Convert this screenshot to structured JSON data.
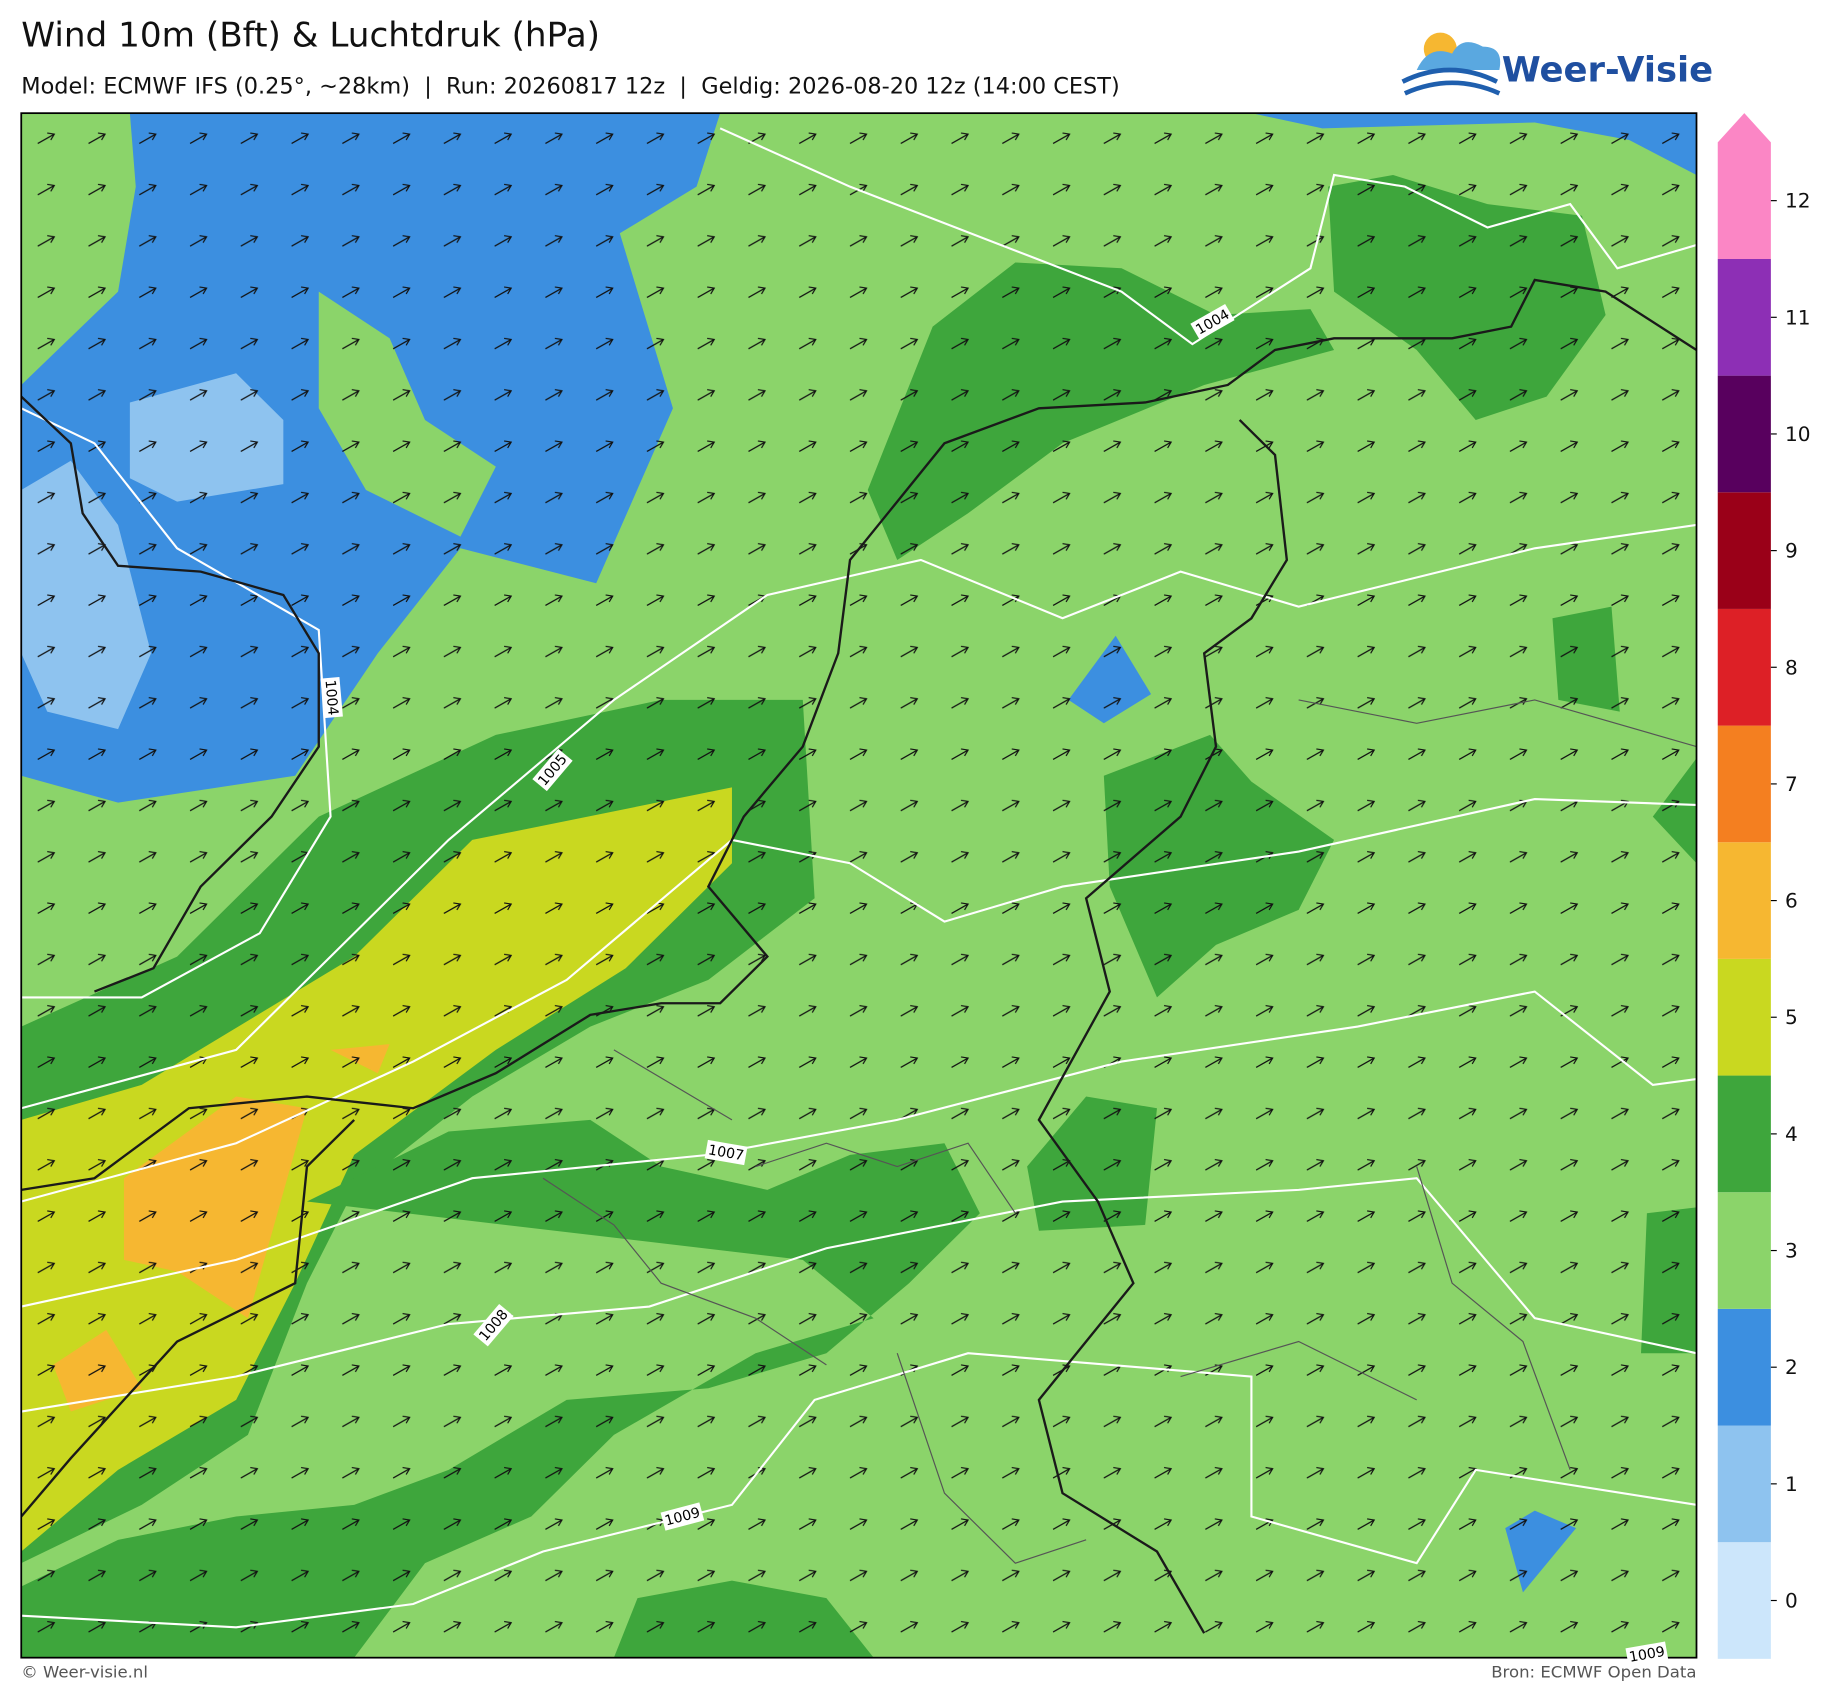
{
  "header": {
    "title": "Wind 10m (Bft) & Luchtdruk (hPa)",
    "subtitle": "Model: ECMWF IFS (0.25°, ~28km)  |  Run: 20260817 12z  |  Geldig: 2026-08-20 12z (14:00 CEST)",
    "logo": "Weer-Visie"
  },
  "map": {
    "isobar_labels": [
      "1004",
      "1004",
      "1005",
      "1007",
      "1008",
      "1009",
      "1009"
    ]
  },
  "legend": {
    "ticks": [
      0,
      1,
      2,
      3,
      4,
      5,
      6,
      7,
      8,
      9,
      10,
      11,
      12
    ],
    "colors": [
      "#cce6fb",
      "#8ec3ef",
      "#3c8fe0",
      "#8bd46a",
      "#3ea63c",
      "#c9d820",
      "#f6b731",
      "#f47f20",
      "#dd2026",
      "#9a0018",
      "#58005e",
      "#8d2fb5",
      "#fb86c5"
    ]
  },
  "footer": {
    "credit": "© Weer-visie.nl",
    "source": "Bron: ECMWF Open Data"
  }
}
